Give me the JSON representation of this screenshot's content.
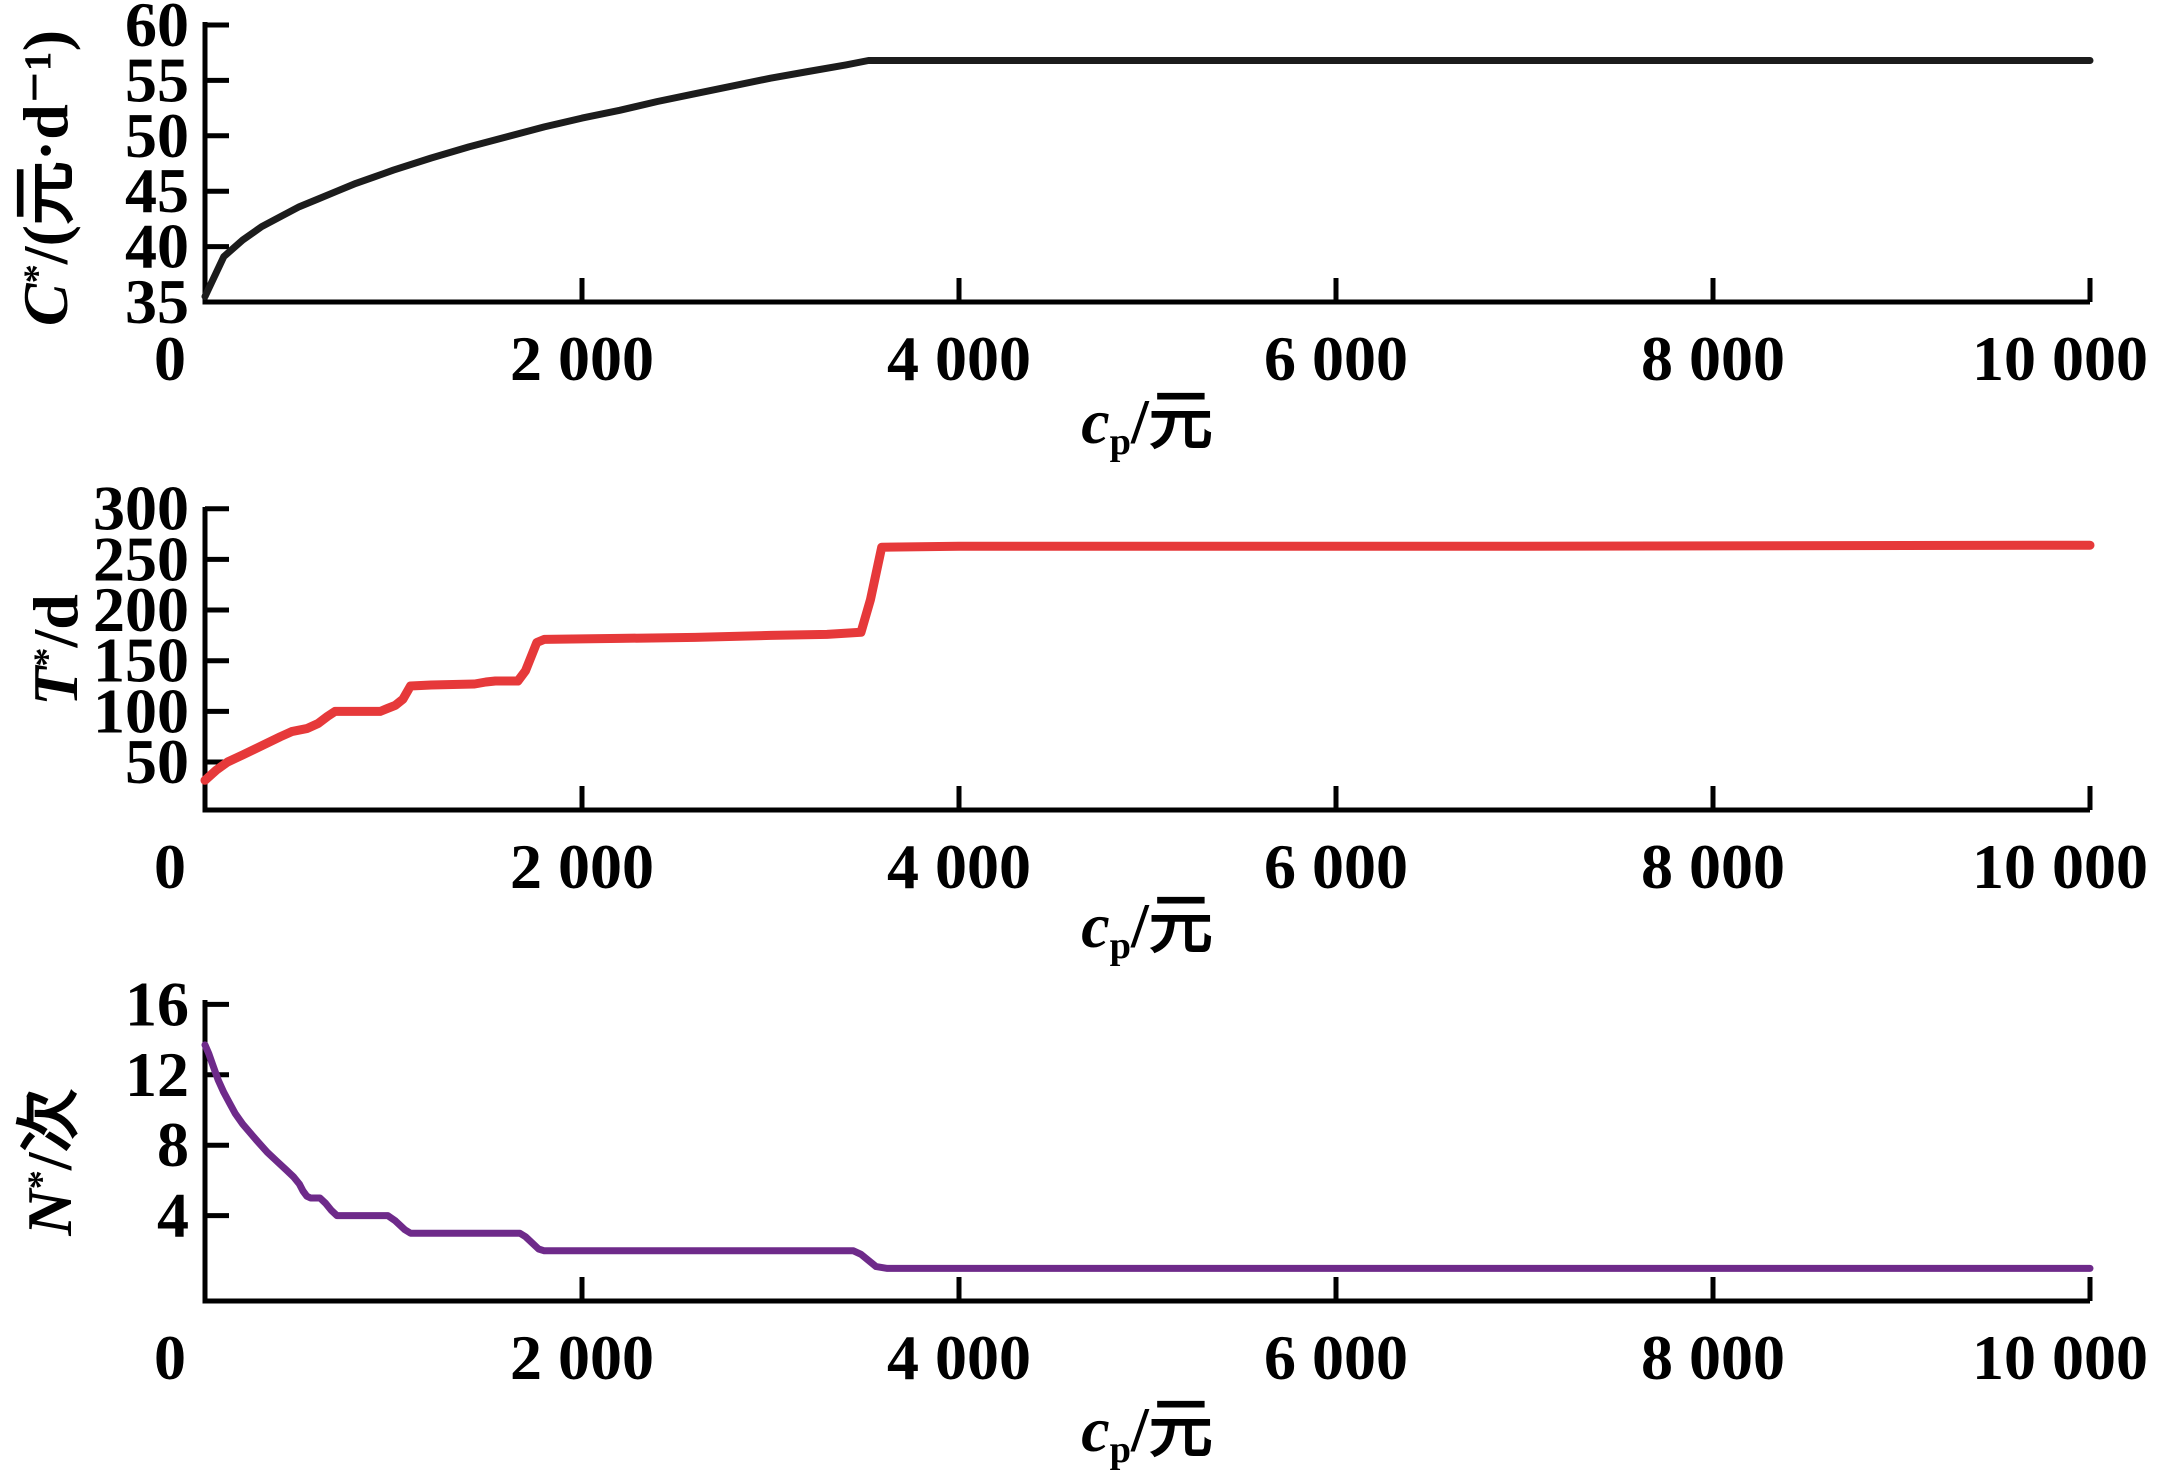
{
  "chart_data": [
    {
      "type": "line",
      "title": "",
      "xlabel": "cp/元",
      "xlabel_parts": {
        "main": "c",
        "sub": "p",
        "rest": "/元"
      },
      "ylabel": "C*/(元·d⁻¹)",
      "ylabel_parts": {
        "main": "C",
        "sup": "*",
        "rest": "/(元·d⁻¹)"
      },
      "xlim": [
        0,
        10000
      ],
      "ylim": [
        35,
        60
      ],
      "xticks": [
        0,
        2000,
        4000,
        6000,
        8000,
        10000
      ],
      "xtick_labels": [
        "0",
        "2 000",
        "4 000",
        "6 000",
        "8 000",
        "10 000"
      ],
      "yticks": [
        35,
        40,
        45,
        50,
        55,
        60
      ],
      "ytick_labels": [
        "35",
        "40",
        "45",
        "50",
        "55",
        "60"
      ],
      "grid": false,
      "legend": null,
      "series": [
        {
          "name": "C*",
          "color": "#1c1c1c",
          "points": [
            [
              0,
              35.5
            ],
            [
              100,
              39.1
            ],
            [
              200,
              40.6
            ],
            [
              300,
              41.8
            ],
            [
              400,
              42.7
            ],
            [
              500,
              43.6
            ],
            [
              600,
              44.3
            ],
            [
              700,
              45.0
            ],
            [
              800,
              45.7
            ],
            [
              900,
              46.3
            ],
            [
              1000,
              46.9
            ],
            [
              1200,
              48.0
            ],
            [
              1400,
              49.0
            ],
            [
              1600,
              49.9
            ],
            [
              1800,
              50.8
            ],
            [
              2000,
              51.6
            ],
            [
              2200,
              52.3
            ],
            [
              2400,
              53.1
            ],
            [
              2600,
              53.8
            ],
            [
              2800,
              54.5
            ],
            [
              3000,
              55.2
            ],
            [
              3200,
              55.8
            ],
            [
              3400,
              56.4
            ],
            [
              3520,
              56.8
            ],
            [
              4000,
              56.8
            ],
            [
              10000,
              56.8
            ]
          ]
        }
      ]
    },
    {
      "type": "line",
      "title": "",
      "xlabel": "cp/元",
      "xlabel_parts": {
        "main": "c",
        "sub": "p",
        "rest": "/元"
      },
      "ylabel": "T*/d",
      "ylabel_parts": {
        "main": "T",
        "sup": "*",
        "rest": "/d"
      },
      "xlim": [
        0,
        10000
      ],
      "ylim": [
        0,
        300
      ],
      "xticks": [
        0,
        2000,
        4000,
        6000,
        8000,
        10000
      ],
      "xtick_labels": [
        "0",
        "2 000",
        "4 000",
        "6 000",
        "8 000",
        "10 000"
      ],
      "yticks": [
        50,
        100,
        150,
        200,
        250,
        300
      ],
      "ytick_labels": [
        "50",
        "100",
        "150",
        "200",
        "250",
        "300"
      ],
      "grid": false,
      "legend": null,
      "series": [
        {
          "name": "T*",
          "color": "#e6393a",
          "points": [
            [
              0,
              32
            ],
            [
              60,
              42
            ],
            [
              120,
              50
            ],
            [
              200,
              57
            ],
            [
              300,
              66
            ],
            [
              400,
              75
            ],
            [
              460,
              80
            ],
            [
              540,
              83
            ],
            [
              600,
              88
            ],
            [
              650,
              95
            ],
            [
              690,
              100
            ],
            [
              930,
              100
            ],
            [
              970,
              103
            ],
            [
              1010,
              106
            ],
            [
              1050,
              112
            ],
            [
              1090,
              125
            ],
            [
              1200,
              126
            ],
            [
              1430,
              127
            ],
            [
              1490,
              129
            ],
            [
              1540,
              130
            ],
            [
              1660,
              130
            ],
            [
              1700,
              140
            ],
            [
              1760,
              168
            ],
            [
              1800,
              171
            ],
            [
              2200,
              172
            ],
            [
              2600,
              173
            ],
            [
              3000,
              175
            ],
            [
              3300,
              176
            ],
            [
              3480,
              178
            ],
            [
              3530,
              210
            ],
            [
              3590,
              262
            ],
            [
              4000,
              263
            ],
            [
              7000,
              263
            ],
            [
              10000,
              264
            ]
          ]
        }
      ]
    },
    {
      "type": "line",
      "title": "",
      "xlabel": "cp/元",
      "xlabel_parts": {
        "main": "c",
        "sub": "p",
        "rest": "/元"
      },
      "ylabel": "N*/次",
      "ylabel_parts": {
        "main": "N",
        "sup": "*",
        "rest": "/次"
      },
      "xlim": [
        0,
        10000
      ],
      "ylim": [
        0,
        16
      ],
      "xticks": [
        0,
        2000,
        4000,
        6000,
        8000,
        10000
      ],
      "xtick_labels": [
        "0",
        "2 000",
        "4 000",
        "6 000",
        "8 000",
        "10 000"
      ],
      "yticks": [
        4,
        8,
        12,
        16
      ],
      "ytick_labels": [
        "4",
        "8",
        "12",
        "16"
      ],
      "grid": false,
      "legend": null,
      "series": [
        {
          "name": "N*",
          "color": "#6e2a8a",
          "points": [
            [
              0,
              13.7
            ],
            [
              20,
              13.2
            ],
            [
              40,
              12.6
            ],
            [
              70,
              11.7
            ],
            [
              100,
              11.0
            ],
            [
              130,
              10.4
            ],
            [
              160,
              9.8
            ],
            [
              200,
              9.2
            ],
            [
              240,
              8.7
            ],
            [
              280,
              8.2
            ],
            [
              330,
              7.6
            ],
            [
              380,
              7.1
            ],
            [
              430,
              6.6
            ],
            [
              470,
              6.2
            ],
            [
              500,
              5.8
            ],
            [
              520,
              5.4
            ],
            [
              540,
              5.1
            ],
            [
              560,
              5.0
            ],
            [
              610,
              5.0
            ],
            [
              640,
              4.7
            ],
            [
              670,
              4.3
            ],
            [
              700,
              4.0
            ],
            [
              970,
              4.0
            ],
            [
              1010,
              3.7
            ],
            [
              1060,
              3.2
            ],
            [
              1090,
              3.0
            ],
            [
              1670,
              3.0
            ],
            [
              1700,
              2.8
            ],
            [
              1770,
              2.1
            ],
            [
              1800,
              2.0
            ],
            [
              3440,
              2.0
            ],
            [
              3480,
              1.8
            ],
            [
              3560,
              1.1
            ],
            [
              3620,
              1.0
            ],
            [
              7000,
              1.0
            ],
            [
              10000,
              1.0
            ]
          ]
        }
      ]
    }
  ]
}
